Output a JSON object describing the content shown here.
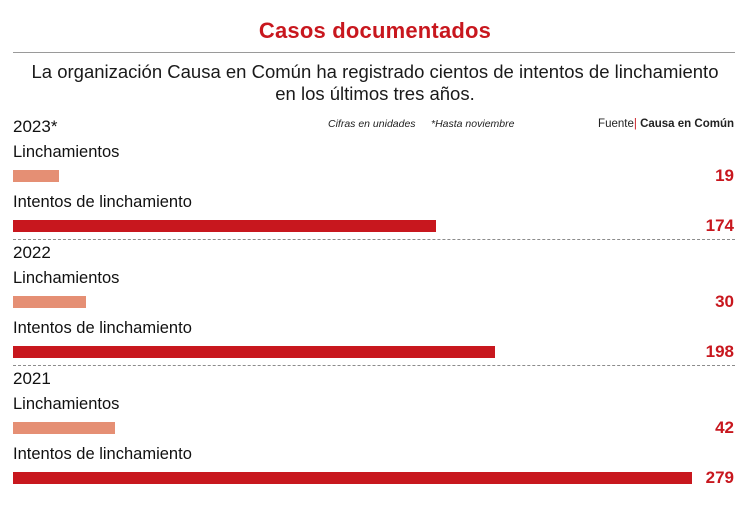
{
  "title": "Casos documentados",
  "subtitle": "La organización Causa en Común ha registrado cientos de intentos de linchamiento en los últimos tres años.",
  "notes": {
    "units": "Cifras en unidades",
    "footnote": "*Hasta noviembre"
  },
  "source": {
    "prefix": "Fuente",
    "name": "Causa en Común"
  },
  "colors": {
    "title": "#c8171e",
    "linchamientos": "#e58f74",
    "intentos": "#c8171e"
  },
  "chart_data": {
    "type": "bar",
    "orientation": "horizontal",
    "title": "Casos documentados",
    "xlim": [
      0,
      279
    ],
    "grid": false,
    "legend": "none",
    "groups": [
      {
        "year": "2023*",
        "items": [
          {
            "label": "Linchamientos",
            "value": 19,
            "kind": "lynch"
          },
          {
            "label": "Intentos de linchamiento",
            "value": 174,
            "kind": "attempt"
          }
        ]
      },
      {
        "year": "2022",
        "items": [
          {
            "label": "Linchamientos",
            "value": 30,
            "kind": "lynch"
          },
          {
            "label": "Intentos de linchamiento",
            "value": 198,
            "kind": "attempt"
          }
        ]
      },
      {
        "year": "2021",
        "items": [
          {
            "label": "Linchamientos",
            "value": 42,
            "kind": "lynch"
          },
          {
            "label": "Intentos de linchamiento",
            "value": 279,
            "kind": "attempt"
          }
        ]
      }
    ]
  }
}
